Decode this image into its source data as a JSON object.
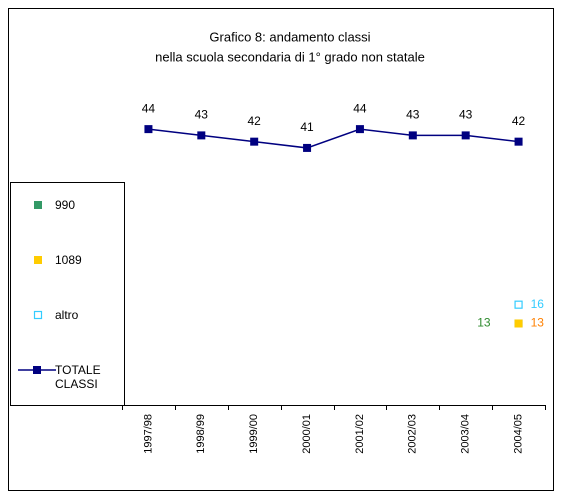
{
  "chart_data": {
    "type": "line",
    "title": "Grafico 8: andamento classi",
    "subtitle": "nella scuola secondaria di 1° grado non statale",
    "categories": [
      "1997/98",
      "1998/99",
      "1999/00",
      "2000/01",
      "2001/02",
      "2002/03",
      "2003/04",
      "2004/05"
    ],
    "ylim": [
      0,
      50
    ],
    "legend": "left",
    "series": [
      {
        "name": "990",
        "color": "#339966",
        "label_color": "#2e8b2e",
        "marker": "filled",
        "label_side": "left",
        "values": [
          null,
          null,
          null,
          null,
          null,
          null,
          null,
          13
        ]
      },
      {
        "name": "1089",
        "color": "#ffcc00",
        "label_color": "#ff8000",
        "marker": "filled",
        "label_side": "right",
        "values": [
          null,
          null,
          null,
          null,
          null,
          null,
          null,
          13
        ]
      },
      {
        "name": "altro",
        "color": "#33ccff",
        "label_color": "#33ccff",
        "marker": "hollow",
        "label_side": "right",
        "values": [
          null,
          null,
          null,
          null,
          null,
          null,
          null,
          16
        ]
      },
      {
        "name": "TOTALE CLASSI",
        "color": "#000080",
        "label_color": "#000000",
        "marker": "line",
        "label_side": "above",
        "values": [
          44,
          43,
          42,
          41,
          44,
          43,
          43,
          42
        ]
      }
    ]
  }
}
